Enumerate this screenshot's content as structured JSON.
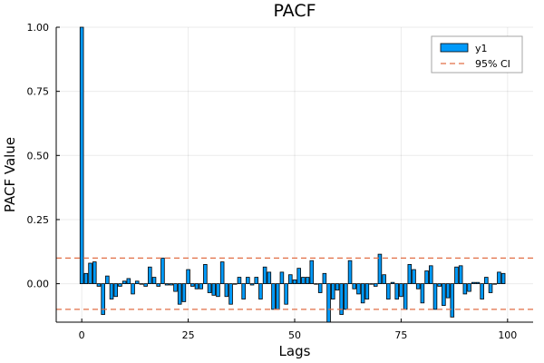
{
  "chart_data": {
    "type": "bar",
    "title": "PACF",
    "xlabel": "Lags",
    "ylabel": "PACF Value",
    "xlim": [
      -6,
      106
    ],
    "ylim": [
      -0.15,
      1.0
    ],
    "xticks": [
      0,
      25,
      50,
      75,
      100
    ],
    "xtick_labels": [
      "0",
      "25",
      "50",
      "75",
      "100"
    ],
    "yticks": [
      0.0,
      0.25,
      0.5,
      0.75,
      1.0
    ],
    "ytick_labels": [
      "0.00",
      "0.25",
      "0.50",
      "0.75",
      "1.00"
    ],
    "grid": true,
    "legend_position": "top-right",
    "series": [
      {
        "name": "y1",
        "color": "#009AFA",
        "x": [
          0,
          1,
          2,
          3,
          4,
          5,
          6,
          7,
          8,
          9,
          10,
          11,
          12,
          13,
          14,
          15,
          16,
          17,
          18,
          19,
          20,
          21,
          22,
          23,
          24,
          25,
          26,
          27,
          28,
          29,
          30,
          31,
          32,
          33,
          34,
          35,
          36,
          37,
          38,
          39,
          40,
          41,
          42,
          43,
          44,
          45,
          46,
          47,
          48,
          49,
          50,
          51,
          52,
          53,
          54,
          55,
          56,
          57,
          58,
          59,
          60,
          61,
          62,
          63,
          64,
          65,
          66,
          67,
          68,
          69,
          70,
          71,
          72,
          73,
          74,
          75,
          76,
          77,
          78,
          79,
          80,
          81,
          82,
          83,
          84,
          85,
          86,
          87,
          88,
          89,
          90,
          91,
          92,
          93,
          94,
          95,
          96,
          97,
          98,
          99
        ],
        "values": [
          1.0,
          0.04,
          0.08,
          0.085,
          -0.01,
          -0.12,
          0.03,
          -0.06,
          -0.05,
          -0.01,
          0.01,
          0.02,
          -0.04,
          0.01,
          0.0,
          -0.01,
          0.065,
          0.025,
          -0.01,
          0.1,
          -0.005,
          -0.005,
          -0.03,
          -0.08,
          -0.07,
          0.055,
          -0.01,
          -0.02,
          -0.02,
          0.075,
          -0.035,
          -0.045,
          -0.05,
          0.085,
          -0.05,
          -0.08,
          0.0,
          0.025,
          -0.06,
          0.025,
          -0.005,
          0.025,
          -0.06,
          0.065,
          0.045,
          -0.1,
          -0.1,
          0.045,
          -0.08,
          0.035,
          0.015,
          0.06,
          0.025,
          0.025,
          0.09,
          0.0,
          -0.035,
          0.04,
          -0.15,
          -0.06,
          -0.025,
          -0.12,
          -0.1,
          0.09,
          -0.02,
          -0.04,
          -0.075,
          -0.06,
          0.0,
          -0.01,
          0.115,
          0.035,
          -0.06,
          0.005,
          -0.06,
          -0.05,
          -0.1,
          0.075,
          0.055,
          -0.02,
          -0.075,
          0.05,
          0.07,
          -0.1,
          -0.01,
          -0.085,
          -0.055,
          -0.13,
          0.065,
          0.07,
          -0.04,
          -0.03,
          0.005,
          0.005,
          -0.06,
          0.025,
          -0.035,
          0.0,
          0.045,
          0.04
        ]
      },
      {
        "name": "95% CI",
        "type": "hline",
        "color": "#E26F46",
        "values": [
          0.1,
          -0.1
        ]
      }
    ]
  }
}
